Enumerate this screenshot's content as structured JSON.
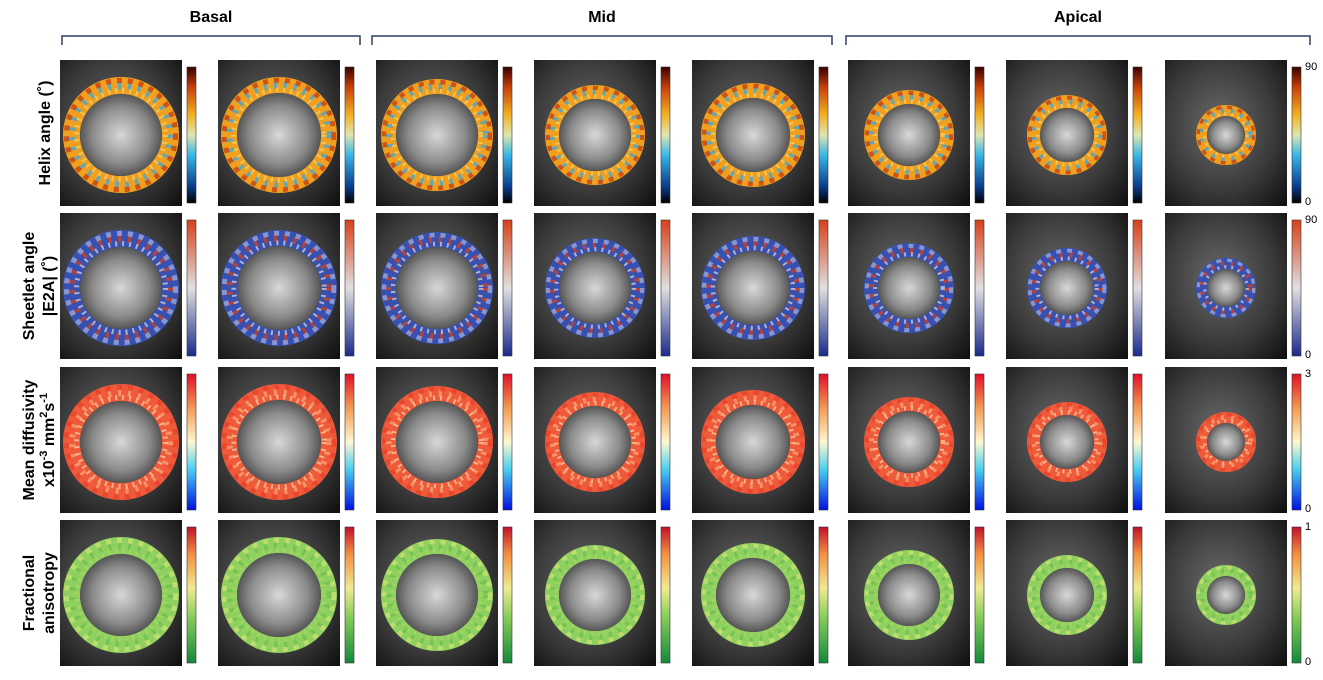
{
  "header": {
    "groups": [
      "Basal",
      "Mid",
      "Apical"
    ]
  },
  "rows": [
    {
      "label": [
        [
          {
            "text": "Helix angle (˚)"
          }
        ]
      ],
      "scale": {
        "max": 90,
        "min": 0
      }
    },
    {
      "label": [
        [
          {
            "text": "Sheetlet angle"
          }
        ],
        [
          {
            "text": "|E2A| (˚)"
          }
        ]
      ],
      "scale": {
        "max": 90,
        "min": 0
      }
    },
    {
      "label": [
        [
          {
            "text": "Mean diffusivity"
          }
        ],
        [
          {
            "text": "x10"
          },
          {
            "text": "-3",
            "sup": true
          },
          {
            "text": " mm"
          },
          {
            "text": "2",
            "sup": true
          },
          {
            "text": "s"
          },
          {
            "text": "-1",
            "sup": true
          }
        ]
      ],
      "scale": {
        "max": 3,
        "min": 0
      }
    },
    {
      "label": [
        [
          {
            "text": "Fractional"
          }
        ],
        [
          {
            "text": "anisotropy"
          }
        ]
      ],
      "scale": {
        "max": 1,
        "min": 0
      }
    }
  ]
}
